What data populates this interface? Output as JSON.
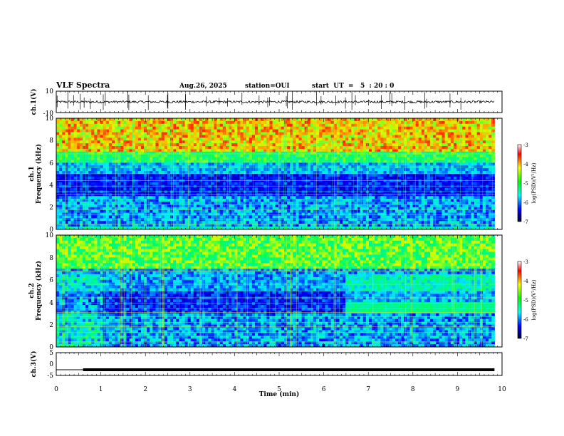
{
  "header": {
    "title": "VLF Spectra",
    "date": "Aug.26, 2025",
    "station": "station=OUI",
    "start": "start  UT  =   5  : 20 : 0"
  },
  "chart_data": {
    "type": "spectrogram",
    "xlabel": "Time  (min)",
    "xlim": [
      0,
      10
    ],
    "xticks": [
      "0",
      "1",
      "2",
      "3",
      "4",
      "5",
      "6",
      "7",
      "8",
      "9",
      "10"
    ],
    "panels": {
      "ch1_wave": {
        "ylabel": "ch.1(V)",
        "ylim": [
          -10,
          10
        ],
        "yticks": [
          "10",
          "-10"
        ],
        "trace_end_min": 9.83
      },
      "ch1_spec": {
        "ylabel_top": "ch.1",
        "ylabel": "Frequency  (kHz)",
        "ylim": [
          0,
          10
        ],
        "yticks": [
          "0",
          "2",
          "4",
          "6",
          "8",
          "10"
        ],
        "colorbar": {
          "label": "log(PSD)(V²/Hz)",
          "range": [
            -7,
            -3
          ],
          "ticks": [
            "-3",
            "-4",
            "-5",
            "-6",
            "-7"
          ]
        }
      },
      "ch2_spec": {
        "ylabel_top": "ch.2",
        "ylabel": "Frequency  (kHz)",
        "ylim": [
          0,
          10
        ],
        "yticks": [
          "0",
          "2",
          "4",
          "6",
          "8",
          "10"
        ],
        "colorbar": {
          "label": "log(PSD)(V²/Hz)",
          "range": [
            -7,
            -3
          ],
          "ticks": [
            "-3",
            "-4",
            "-5",
            "-6",
            "-7"
          ]
        }
      },
      "ch3_wave": {
        "ylabel": "ch.3(V)",
        "ylim": [
          -5,
          5
        ],
        "yticks": [
          "5",
          "0",
          "-5"
        ],
        "level_V": -2.5,
        "level_start_min": 0.6,
        "level_end_min": 9.83
      }
    }
  }
}
